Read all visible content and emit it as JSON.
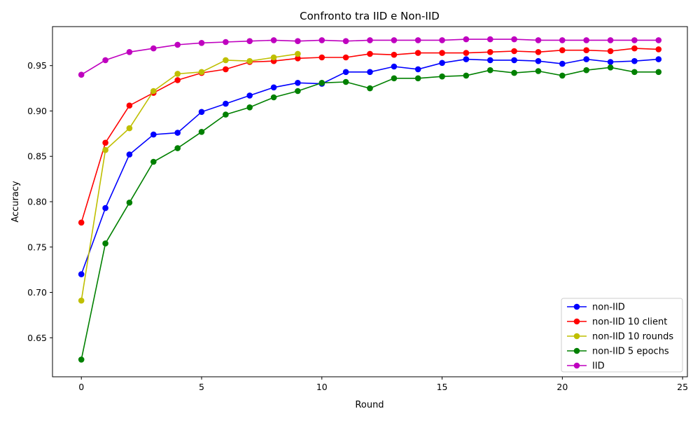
{
  "chart_data": {
    "type": "line",
    "title": "Confronto tra IID e Non-IID",
    "xlabel": "Round",
    "ylabel": "Accuracy",
    "xlim": [
      -1.2,
      25.2
    ],
    "ylim": [
      0.607,
      0.993
    ],
    "xticks": [
      0,
      5,
      10,
      15,
      20,
      25
    ],
    "yticks": [
      0.65,
      0.7,
      0.75,
      0.8,
      0.85,
      0.9,
      0.95
    ],
    "xtick_labels": [
      "0",
      "5",
      "10",
      "15",
      "20",
      "25"
    ],
    "ytick_labels": [
      "0.65",
      "0.70",
      "0.75",
      "0.80",
      "0.85",
      "0.90",
      "0.95"
    ],
    "grid": false,
    "legend_position": "bottom-right",
    "series": [
      {
        "name": "non-IID",
        "color": "#0000ff",
        "x": [
          0,
          1,
          2,
          3,
          4,
          5,
          6,
          7,
          8,
          9,
          10,
          11,
          12,
          13,
          14,
          15,
          16,
          17,
          18,
          19,
          20,
          21,
          22,
          23,
          24
        ],
        "values": [
          0.72,
          0.793,
          0.852,
          0.874,
          0.876,
          0.899,
          0.908,
          0.917,
          0.926,
          0.931,
          0.93,
          0.943,
          0.943,
          0.949,
          0.946,
          0.953,
          0.957,
          0.956,
          0.956,
          0.955,
          0.952,
          0.957,
          0.954,
          0.955,
          0.957
        ]
      },
      {
        "name": "non-IID 10 client",
        "color": "#ff0000",
        "x": [
          0,
          1,
          2,
          3,
          4,
          5,
          6,
          7,
          8,
          9,
          10,
          11,
          12,
          13,
          14,
          15,
          16,
          17,
          18,
          19,
          20,
          21,
          22,
          23,
          24
        ],
        "values": [
          0.777,
          0.865,
          0.906,
          0.92,
          0.934,
          0.942,
          0.946,
          0.954,
          0.955,
          0.958,
          0.959,
          0.959,
          0.963,
          0.962,
          0.964,
          0.964,
          0.964,
          0.965,
          0.966,
          0.965,
          0.967,
          0.967,
          0.966,
          0.969,
          0.968
        ]
      },
      {
        "name": "non-IID 10 rounds",
        "color": "#bfbf00",
        "x": [
          0,
          1,
          2,
          3,
          4,
          5,
          6,
          7,
          8,
          9
        ],
        "values": [
          0.691,
          0.857,
          0.881,
          0.922,
          0.941,
          0.943,
          0.956,
          0.955,
          0.959,
          0.963
        ]
      },
      {
        "name": "non-IID 5 epochs",
        "color": "#008000",
        "x": [
          0,
          1,
          2,
          3,
          4,
          5,
          6,
          7,
          8,
          9,
          10,
          11,
          12,
          13,
          14,
          15,
          16,
          17,
          18,
          19,
          20,
          21,
          22,
          23,
          24
        ],
        "values": [
          0.626,
          0.754,
          0.799,
          0.844,
          0.859,
          0.877,
          0.896,
          0.904,
          0.915,
          0.922,
          0.931,
          0.932,
          0.925,
          0.936,
          0.936,
          0.938,
          0.939,
          0.945,
          0.942,
          0.944,
          0.939,
          0.945,
          0.948,
          0.943,
          0.943
        ]
      },
      {
        "name": "IID",
        "color": "#bf00bf",
        "x": [
          0,
          1,
          2,
          3,
          4,
          5,
          6,
          7,
          8,
          9,
          10,
          11,
          12,
          13,
          14,
          15,
          16,
          17,
          18,
          19,
          20,
          21,
          22,
          23,
          24
        ],
        "values": [
          0.94,
          0.956,
          0.965,
          0.969,
          0.973,
          0.975,
          0.976,
          0.977,
          0.978,
          0.977,
          0.978,
          0.977,
          0.978,
          0.978,
          0.978,
          0.978,
          0.979,
          0.979,
          0.979,
          0.978,
          0.978,
          0.978,
          0.978,
          0.978,
          0.978
        ]
      }
    ]
  }
}
